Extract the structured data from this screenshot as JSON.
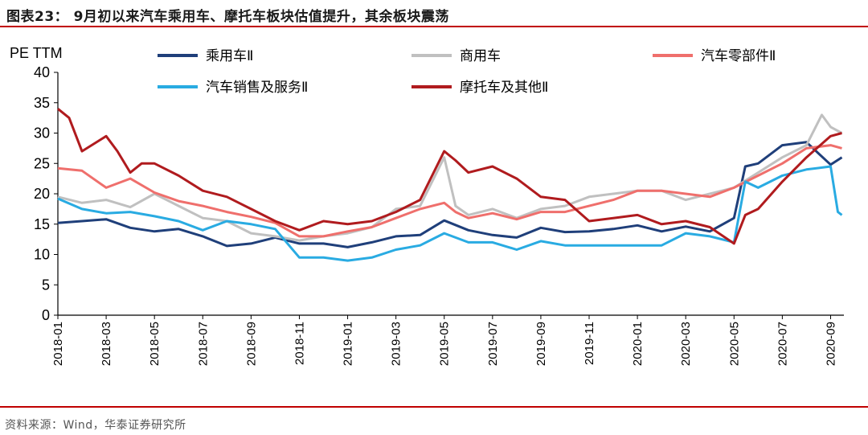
{
  "header": {
    "title": "图表23：  9月初以来汽车乘用车、摩托车板块估值提升，其余板块震荡"
  },
  "footer": {
    "source": "资料来源：Wind，华泰证券研究所"
  },
  "chart_data": {
    "type": "line",
    "ylabel": "PE  TTM",
    "xlabel": "",
    "ylim": [
      0,
      40
    ],
    "y_ticks": [
      0,
      5,
      10,
      15,
      20,
      25,
      30,
      35,
      40
    ],
    "x_range": [
      "2018-01",
      "2020-09"
    ],
    "x_ticks": [
      "2018-01",
      "2018-03",
      "2018-05",
      "2018-07",
      "2018-09",
      "2018-11",
      "2019-01",
      "2019-03",
      "2019-05",
      "2019-07",
      "2019-09",
      "2019-11",
      "2020-01",
      "2020-03",
      "2020-05",
      "2020-07",
      "2020-09"
    ],
    "grid": false,
    "legend_position": "top",
    "series": [
      {
        "name": "乘用车Ⅱ",
        "color": "#1f3f7a",
        "points": [
          [
            "2018-01",
            15.2
          ],
          [
            "2018-02",
            15.5
          ],
          [
            "2018-03",
            15.8
          ],
          [
            "2018-04",
            14.4
          ],
          [
            "2018-05",
            13.8
          ],
          [
            "2018-06",
            14.2
          ],
          [
            "2018-07",
            13.0
          ],
          [
            "2018-08",
            11.4
          ],
          [
            "2018-09",
            11.8
          ],
          [
            "2018-10",
            12.8
          ],
          [
            "2018-11",
            11.8
          ],
          [
            "2018-12",
            11.8
          ],
          [
            "2019-01",
            11.2
          ],
          [
            "2019-02",
            12.0
          ],
          [
            "2019-03",
            13.0
          ],
          [
            "2019-04",
            13.2
          ],
          [
            "2019-05",
            15.6
          ],
          [
            "2019-06",
            14.0
          ],
          [
            "2019-07",
            13.2
          ],
          [
            "2019-08",
            12.8
          ],
          [
            "2019-09",
            14.4
          ],
          [
            "2019-10",
            13.7
          ],
          [
            "2019-11",
            13.8
          ],
          [
            "2019-12",
            14.2
          ],
          [
            "2020-01",
            14.8
          ],
          [
            "2020-02",
            13.8
          ],
          [
            "2020-03",
            14.6
          ],
          [
            "2020-04",
            13.8
          ],
          [
            "2020-05",
            16.0
          ],
          [
            "2020-05-15",
            24.5
          ],
          [
            "2020-06",
            25.0
          ],
          [
            "2020-07",
            28.0
          ],
          [
            "2020-08",
            28.5
          ],
          [
            "2020-09",
            24.8
          ],
          [
            "2020-09-15",
            26.0
          ]
        ]
      },
      {
        "name": "商用车",
        "color": "#c0c0c0",
        "points": [
          [
            "2018-01",
            19.5
          ],
          [
            "2018-02",
            18.5
          ],
          [
            "2018-03",
            19.0
          ],
          [
            "2018-04",
            17.8
          ],
          [
            "2018-05",
            20.0
          ],
          [
            "2018-06",
            18.0
          ],
          [
            "2018-07",
            16.0
          ],
          [
            "2018-08",
            15.5
          ],
          [
            "2018-09",
            13.5
          ],
          [
            "2018-10",
            13.0
          ],
          [
            "2018-11",
            12.3
          ],
          [
            "2018-12",
            13.0
          ],
          [
            "2019-01",
            13.5
          ],
          [
            "2019-02",
            14.5
          ],
          [
            "2019-03",
            17.5
          ],
          [
            "2019-04",
            18.0
          ],
          [
            "2019-05",
            26.0
          ],
          [
            "2019-05-15",
            18.0
          ],
          [
            "2019-06",
            16.5
          ],
          [
            "2019-07",
            17.5
          ],
          [
            "2019-08",
            16.0
          ],
          [
            "2019-09",
            17.5
          ],
          [
            "2019-10",
            18.0
          ],
          [
            "2019-11",
            19.5
          ],
          [
            "2019-12",
            20.0
          ],
          [
            "2020-01",
            20.5
          ],
          [
            "2020-02",
            20.5
          ],
          [
            "2020-03",
            19.0
          ],
          [
            "2020-04",
            20.0
          ],
          [
            "2020-05",
            21.0
          ],
          [
            "2020-06",
            23.5
          ],
          [
            "2020-07",
            26.0
          ],
          [
            "2020-08",
            28.0
          ],
          [
            "2020-08-20",
            33.0
          ],
          [
            "2020-09",
            31.0
          ],
          [
            "2020-09-15",
            30.0
          ]
        ]
      },
      {
        "name": "汽车零部件Ⅱ",
        "color": "#ef6f6c",
        "points": [
          [
            "2018-01",
            24.2
          ],
          [
            "2018-02",
            23.8
          ],
          [
            "2018-03",
            21.0
          ],
          [
            "2018-04",
            22.5
          ],
          [
            "2018-05",
            20.2
          ],
          [
            "2018-06",
            18.8
          ],
          [
            "2018-07",
            18.0
          ],
          [
            "2018-08",
            17.0
          ],
          [
            "2018-09",
            16.2
          ],
          [
            "2018-10",
            15.2
          ],
          [
            "2018-11",
            13.0
          ],
          [
            "2018-12",
            13.0
          ],
          [
            "2019-01",
            13.8
          ],
          [
            "2019-02",
            14.5
          ],
          [
            "2019-03",
            16.0
          ],
          [
            "2019-04",
            17.5
          ],
          [
            "2019-05",
            18.5
          ],
          [
            "2019-05-15",
            17.0
          ],
          [
            "2019-06",
            16.0
          ],
          [
            "2019-07",
            16.8
          ],
          [
            "2019-08",
            15.8
          ],
          [
            "2019-09",
            17.0
          ],
          [
            "2019-10",
            17.0
          ],
          [
            "2019-11",
            18.0
          ],
          [
            "2019-12",
            19.0
          ],
          [
            "2020-01",
            20.5
          ],
          [
            "2020-02",
            20.5
          ],
          [
            "2020-03",
            20.0
          ],
          [
            "2020-04",
            19.5
          ],
          [
            "2020-05",
            21.0
          ],
          [
            "2020-06",
            23.0
          ],
          [
            "2020-07",
            25.0
          ],
          [
            "2020-08",
            27.5
          ],
          [
            "2020-09",
            28.0
          ],
          [
            "2020-09-15",
            27.5
          ]
        ]
      },
      {
        "name": "汽车销售及服务Ⅱ",
        "color": "#29abe2",
        "points": [
          [
            "2018-01",
            19.2
          ],
          [
            "2018-02",
            17.5
          ],
          [
            "2018-03",
            16.8
          ],
          [
            "2018-04",
            17.0
          ],
          [
            "2018-05",
            16.3
          ],
          [
            "2018-06",
            15.5
          ],
          [
            "2018-07",
            14.0
          ],
          [
            "2018-08",
            15.5
          ],
          [
            "2018-09",
            15.0
          ],
          [
            "2018-10",
            14.2
          ],
          [
            "2018-11",
            9.5
          ],
          [
            "2018-12",
            9.5
          ],
          [
            "2019-01",
            9.0
          ],
          [
            "2019-02",
            9.5
          ],
          [
            "2019-03",
            10.8
          ],
          [
            "2019-04",
            11.5
          ],
          [
            "2019-05",
            13.5
          ],
          [
            "2019-05-15",
            12.8
          ],
          [
            "2019-06",
            12.0
          ],
          [
            "2019-07",
            12.0
          ],
          [
            "2019-08",
            10.8
          ],
          [
            "2019-09",
            12.2
          ],
          [
            "2019-10",
            11.5
          ],
          [
            "2019-11",
            11.5
          ],
          [
            "2019-12",
            11.5
          ],
          [
            "2020-01",
            11.5
          ],
          [
            "2020-02",
            11.5
          ],
          [
            "2020-03",
            13.5
          ],
          [
            "2020-04",
            13.0
          ],
          [
            "2020-05",
            12.0
          ],
          [
            "2020-05-15",
            22.0
          ],
          [
            "2020-06",
            21.0
          ],
          [
            "2020-07",
            23.0
          ],
          [
            "2020-08",
            24.0
          ],
          [
            "2020-09",
            24.5
          ],
          [
            "2020-09-10",
            17.0
          ],
          [
            "2020-09-15",
            16.5
          ]
        ]
      },
      {
        "name": "摩托车及其他Ⅱ",
        "color": "#b01b1e",
        "points": [
          [
            "2018-01",
            34.0
          ],
          [
            "2018-01-15",
            32.5
          ],
          [
            "2018-02",
            27.0
          ],
          [
            "2018-03",
            29.5
          ],
          [
            "2018-03-15",
            27.0
          ],
          [
            "2018-04",
            23.5
          ],
          [
            "2018-04-15",
            25.0
          ],
          [
            "2018-05",
            25.0
          ],
          [
            "2018-06",
            23.0
          ],
          [
            "2018-07",
            20.5
          ],
          [
            "2018-08",
            19.5
          ],
          [
            "2018-09",
            17.5
          ],
          [
            "2018-10",
            15.5
          ],
          [
            "2018-11",
            14.0
          ],
          [
            "2018-12",
            15.5
          ],
          [
            "2019-01",
            15.0
          ],
          [
            "2019-02",
            15.5
          ],
          [
            "2019-03",
            17.0
          ],
          [
            "2019-04",
            19.0
          ],
          [
            "2019-05",
            27.0
          ],
          [
            "2019-05-15",
            25.5
          ],
          [
            "2019-06",
            23.5
          ],
          [
            "2019-07",
            24.5
          ],
          [
            "2019-08",
            22.5
          ],
          [
            "2019-09",
            19.5
          ],
          [
            "2019-10",
            19.0
          ],
          [
            "2019-11",
            15.5
          ],
          [
            "2019-12",
            16.0
          ],
          [
            "2020-01",
            16.5
          ],
          [
            "2020-02",
            15.0
          ],
          [
            "2020-03",
            15.5
          ],
          [
            "2020-04",
            14.5
          ],
          [
            "2020-05",
            11.8
          ],
          [
            "2020-05-15",
            16.5
          ],
          [
            "2020-06",
            17.5
          ],
          [
            "2020-07",
            22.0
          ],
          [
            "2020-08",
            26.0
          ],
          [
            "2020-09",
            29.5
          ],
          [
            "2020-09-15",
            30.0
          ]
        ]
      }
    ]
  }
}
